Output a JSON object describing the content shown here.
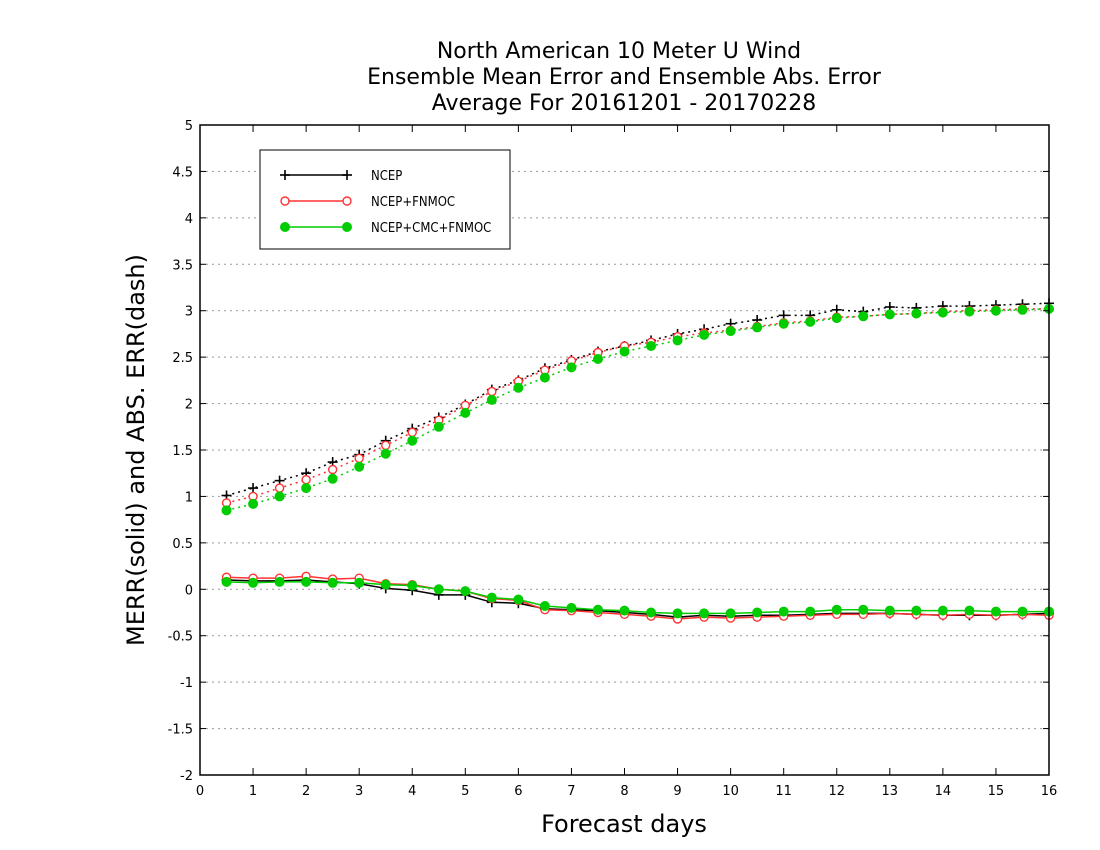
{
  "chart_data": {
    "type": "line",
    "title_lines": [
      "North American 10 Meter U Wind",
      "Ensemble Mean Error and Ensemble Abs. Error",
      "Average For 20161201 - 20170228"
    ],
    "xlabel": "Forecast days",
    "ylabel": "MERR(solid) and ABS. ERR(dash)",
    "xlim": [
      0,
      16
    ],
    "ylim": [
      -2,
      5
    ],
    "x_ticks": [
      0,
      1,
      2,
      3,
      4,
      5,
      6,
      7,
      8,
      9,
      10,
      11,
      12,
      13,
      14,
      15,
      16
    ],
    "y_ticks": [
      -2,
      -1.5,
      -1,
      -0.5,
      0,
      0.5,
      1,
      1.5,
      2,
      2.5,
      3,
      3.5,
      4,
      4.5,
      5
    ],
    "y_tick_labels": [
      "-2",
      "-1.5",
      "-1",
      "-0.5",
      "0",
      "0.5",
      "1",
      "1.5",
      "2",
      "2.5",
      "3",
      "3.5",
      "4",
      "4.5",
      "5"
    ],
    "grid": "horizontal dotted",
    "legend_position": "top-left",
    "x": [
      0.5,
      1,
      1.5,
      2,
      2.5,
      3,
      3.5,
      4,
      4.5,
      5,
      5.5,
      6,
      6.5,
      7,
      7.5,
      8,
      8.5,
      9,
      9.5,
      10,
      10.5,
      11,
      11.5,
      12,
      12.5,
      13,
      13.5,
      14,
      14.5,
      15,
      15.5,
      16
    ],
    "series": [
      {
        "name": "NCEP",
        "color": "#000000",
        "marker": "plus",
        "merr": [
          0.1,
          0.09,
          0.09,
          0.1,
          0.08,
          0.06,
          0.01,
          -0.01,
          -0.06,
          -0.06,
          -0.14,
          -0.15,
          -0.21,
          -0.22,
          -0.23,
          -0.25,
          -0.27,
          -0.3,
          -0.28,
          -0.29,
          -0.28,
          -0.28,
          -0.27,
          -0.26,
          -0.26,
          -0.26,
          -0.27,
          -0.28,
          -0.28,
          -0.28,
          -0.27,
          -0.26
        ],
        "abs_err": [
          1.01,
          1.09,
          1.17,
          1.25,
          1.37,
          1.45,
          1.6,
          1.73,
          1.85,
          1.99,
          2.15,
          2.25,
          2.38,
          2.47,
          2.56,
          2.62,
          2.68,
          2.75,
          2.8,
          2.86,
          2.9,
          2.95,
          2.95,
          3.01,
          2.99,
          3.04,
          3.03,
          3.05,
          3.05,
          3.06,
          3.07,
          3.08
        ]
      },
      {
        "name": "NCEP+FNMOC",
        "color": "#ff3333",
        "marker": "open-circle",
        "merr": [
          0.13,
          0.12,
          0.12,
          0.14,
          0.11,
          0.12,
          0.06,
          0.05,
          0.0,
          -0.02,
          -0.1,
          -0.12,
          -0.22,
          -0.23,
          -0.25,
          -0.27,
          -0.29,
          -0.32,
          -0.3,
          -0.31,
          -0.3,
          -0.29,
          -0.28,
          -0.27,
          -0.27,
          -0.26,
          -0.27,
          -0.28,
          -0.27,
          -0.28,
          -0.27,
          -0.28
        ],
        "abs_err": [
          0.93,
          1.0,
          1.09,
          1.18,
          1.29,
          1.41,
          1.55,
          1.69,
          1.82,
          1.98,
          2.13,
          2.24,
          2.36,
          2.46,
          2.55,
          2.62,
          2.66,
          2.72,
          2.76,
          2.79,
          2.83,
          2.87,
          2.89,
          2.93,
          2.94,
          2.96,
          2.97,
          2.99,
          3.0,
          3.01,
          3.02,
          3.02
        ]
      },
      {
        "name": "NCEP+CMC+FNMOC",
        "color": "#00cc00",
        "marker": "filled-circle",
        "merr": [
          0.08,
          0.07,
          0.08,
          0.08,
          0.07,
          0.07,
          0.05,
          0.04,
          0.0,
          -0.02,
          -0.09,
          -0.11,
          -0.18,
          -0.2,
          -0.22,
          -0.23,
          -0.25,
          -0.26,
          -0.26,
          -0.26,
          -0.25,
          -0.24,
          -0.24,
          -0.22,
          -0.22,
          -0.23,
          -0.23,
          -0.23,
          -0.23,
          -0.24,
          -0.24,
          -0.24
        ],
        "abs_err": [
          0.85,
          0.92,
          1.0,
          1.09,
          1.19,
          1.32,
          1.46,
          1.6,
          1.75,
          1.9,
          2.04,
          2.17,
          2.28,
          2.39,
          2.48,
          2.56,
          2.62,
          2.68,
          2.74,
          2.78,
          2.82,
          2.86,
          2.88,
          2.92,
          2.94,
          2.96,
          2.97,
          2.98,
          2.99,
          3.0,
          3.01,
          3.02
        ]
      }
    ]
  }
}
